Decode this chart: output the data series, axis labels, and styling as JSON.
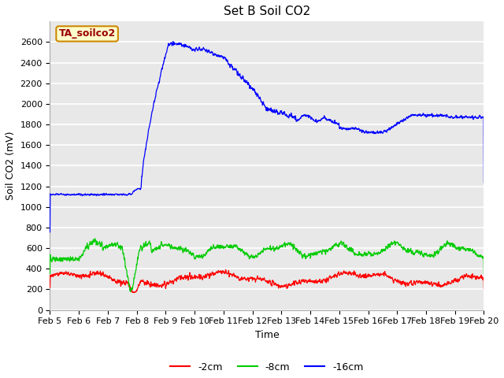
{
  "title": "Set B Soil CO2",
  "ylabel": "Soil CO2 (mV)",
  "xlabel": "Time",
  "xlim": [
    0,
    15
  ],
  "ylim": [
    0,
    2800
  ],
  "yticks": [
    0,
    200,
    400,
    600,
    800,
    1000,
    1200,
    1400,
    1600,
    1800,
    2000,
    2200,
    2400,
    2600
  ],
  "xtick_labels": [
    "Feb 5",
    "Feb 6",
    "Feb 7",
    "Feb 8",
    "Feb 9",
    "Feb 10",
    "Feb 11",
    "Feb 12",
    "Feb 13",
    "Feb 14",
    "Feb 15",
    "Feb 16",
    "Feb 17",
    "Feb 18",
    "Feb 19",
    "Feb 20"
  ],
  "legend_labels": [
    "-2cm",
    "-8cm",
    "-16cm"
  ],
  "legend_colors": [
    "#ff0000",
    "#00cc00",
    "#0000ff"
  ],
  "label_box_text": "TA_soilco2",
  "label_box_bg": "#ffffcc",
  "label_box_border": "#cc8800",
  "label_box_text_color": "#990000",
  "fig_bg_color": "#ffffff",
  "plot_bg_color": "#e8e8e8",
  "grid_color": "#ffffff",
  "title_fontsize": 11,
  "axis_label_fontsize": 9,
  "tick_fontsize": 8,
  "legend_fontsize": 9
}
